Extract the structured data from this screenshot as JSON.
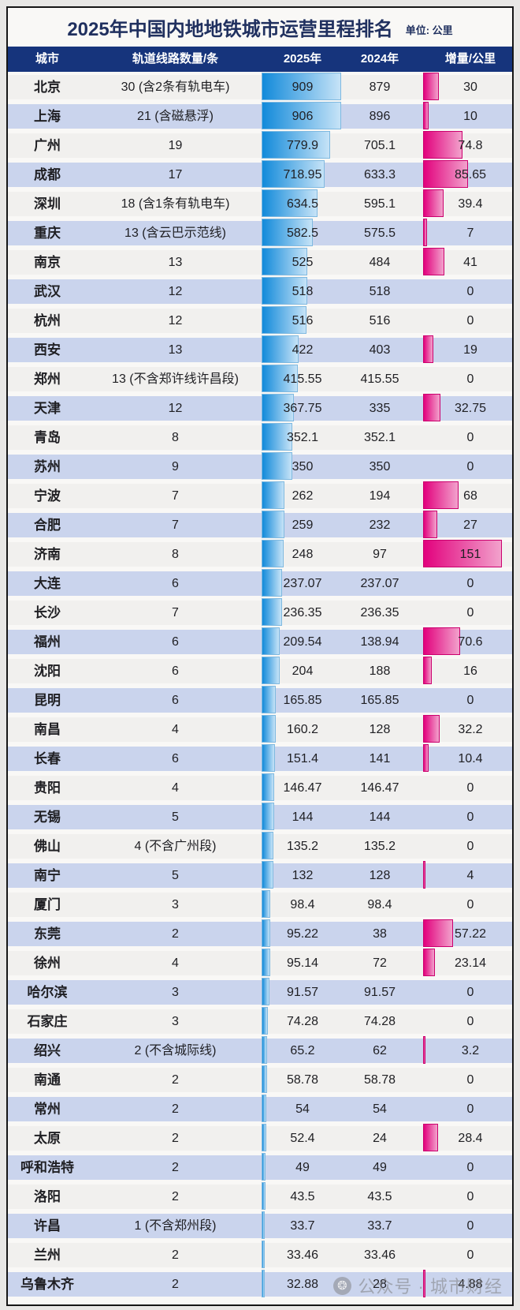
{
  "page": {
    "title": "2025年中国内地地铁城市运营里程排名",
    "unit_label": "单位: 公里",
    "watermark_text": "公众号 · 城市财经"
  },
  "colors": {
    "page_background": "#e8e7e5",
    "card_background": "#f9f8f6",
    "header_background": "#16347c",
    "header_text": "#ffffff",
    "row_odd": "#f1f0ee",
    "row_even": "#cad4ed",
    "body_text": "#1f1f23",
    "title_text": "#20305f",
    "mileage_bar_start": "#128ada",
    "mileage_bar_end": "#c6e3f7",
    "increment_bar_start": "#e2017d",
    "increment_bar_end": "#f2a2cc"
  },
  "chart_data": {
    "type": "table",
    "title": "2025年中国内地地铁城市运营里程排名",
    "unit": "公里",
    "columns": [
      "城市",
      "轨道线路数量/条",
      "2025年",
      "2024年",
      "增量/公里"
    ],
    "bar_columns": {
      "mileage_2025": {
        "axis_max": 909,
        "style": "blue-gradient-bar"
      },
      "increment": {
        "axis_max": 151,
        "style": "pink-gradient-bar"
      }
    },
    "rows": [
      {
        "city": "北京",
        "lines": "30 (含2条有轨电车)",
        "y2025": "909",
        "y2024": "879",
        "increment": "30"
      },
      {
        "city": "上海",
        "lines": "21 (含磁悬浮)",
        "y2025": "906",
        "y2024": "896",
        "increment": "10"
      },
      {
        "city": "广州",
        "lines": "19",
        "y2025": "779.9",
        "y2024": "705.1",
        "increment": "74.8"
      },
      {
        "city": "成都",
        "lines": "17",
        "y2025": "718.95",
        "y2024": "633.3",
        "increment": "85.65"
      },
      {
        "city": "深圳",
        "lines": "18 (含1条有轨电车)",
        "y2025": "634.5",
        "y2024": "595.1",
        "increment": "39.4"
      },
      {
        "city": "重庆",
        "lines": "13 (含云巴示范线)",
        "y2025": "582.5",
        "y2024": "575.5",
        "increment": "7"
      },
      {
        "city": "南京",
        "lines": "13",
        "y2025": "525",
        "y2024": "484",
        "increment": "41"
      },
      {
        "city": "武汉",
        "lines": "12",
        "y2025": "518",
        "y2024": "518",
        "increment": "0"
      },
      {
        "city": "杭州",
        "lines": "12",
        "y2025": "516",
        "y2024": "516",
        "increment": "0"
      },
      {
        "city": "西安",
        "lines": "13",
        "y2025": "422",
        "y2024": "403",
        "increment": "19"
      },
      {
        "city": "郑州",
        "lines": "13 (不含郑许线许昌段)",
        "y2025": "415.55",
        "y2024": "415.55",
        "increment": "0"
      },
      {
        "city": "天津",
        "lines": "12",
        "y2025": "367.75",
        "y2024": "335",
        "increment": "32.75"
      },
      {
        "city": "青岛",
        "lines": "8",
        "y2025": "352.1",
        "y2024": "352.1",
        "increment": "0"
      },
      {
        "city": "苏州",
        "lines": "9",
        "y2025": "350",
        "y2024": "350",
        "increment": "0"
      },
      {
        "city": "宁波",
        "lines": "7",
        "y2025": "262",
        "y2024": "194",
        "increment": "68"
      },
      {
        "city": "合肥",
        "lines": "7",
        "y2025": "259",
        "y2024": "232",
        "increment": "27"
      },
      {
        "city": "济南",
        "lines": "8",
        "y2025": "248",
        "y2024": "97",
        "increment": "151"
      },
      {
        "city": "大连",
        "lines": "6",
        "y2025": "237.07",
        "y2024": "237.07",
        "increment": "0"
      },
      {
        "city": "长沙",
        "lines": "7",
        "y2025": "236.35",
        "y2024": "236.35",
        "increment": "0"
      },
      {
        "city": "福州",
        "lines": "6",
        "y2025": "209.54",
        "y2024": "138.94",
        "increment": "70.6"
      },
      {
        "city": "沈阳",
        "lines": "6",
        "y2025": "204",
        "y2024": "188",
        "increment": "16"
      },
      {
        "city": "昆明",
        "lines": "6",
        "y2025": "165.85",
        "y2024": "165.85",
        "increment": "0"
      },
      {
        "city": "南昌",
        "lines": "4",
        "y2025": "160.2",
        "y2024": "128",
        "increment": "32.2"
      },
      {
        "city": "长春",
        "lines": "6",
        "y2025": "151.4",
        "y2024": "141",
        "increment": "10.4"
      },
      {
        "city": "贵阳",
        "lines": "4",
        "y2025": "146.47",
        "y2024": "146.47",
        "increment": "0"
      },
      {
        "city": "无锡",
        "lines": "5",
        "y2025": "144",
        "y2024": "144",
        "increment": "0"
      },
      {
        "city": "佛山",
        "lines": "4 (不含广州段)",
        "y2025": "135.2",
        "y2024": "135.2",
        "increment": "0"
      },
      {
        "city": "南宁",
        "lines": "5",
        "y2025": "132",
        "y2024": "128",
        "increment": "4"
      },
      {
        "city": "厦门",
        "lines": "3",
        "y2025": "98.4",
        "y2024": "98.4",
        "increment": "0"
      },
      {
        "city": "东莞",
        "lines": "2",
        "y2025": "95.22",
        "y2024": "38",
        "increment": "57.22"
      },
      {
        "city": "徐州",
        "lines": "4",
        "y2025": "95.14",
        "y2024": "72",
        "increment": "23.14"
      },
      {
        "city": "哈尔滨",
        "lines": "3",
        "y2025": "91.57",
        "y2024": "91.57",
        "increment": "0"
      },
      {
        "city": "石家庄",
        "lines": "3",
        "y2025": "74.28",
        "y2024": "74.28",
        "increment": "0"
      },
      {
        "city": "绍兴",
        "lines": "2 (不含城际线)",
        "y2025": "65.2",
        "y2024": "62",
        "increment": "3.2"
      },
      {
        "city": "南通",
        "lines": "2",
        "y2025": "58.78",
        "y2024": "58.78",
        "increment": "0"
      },
      {
        "city": "常州",
        "lines": "2",
        "y2025": "54",
        "y2024": "54",
        "increment": "0"
      },
      {
        "city": "太原",
        "lines": "2",
        "y2025": "52.4",
        "y2024": "24",
        "increment": "28.4"
      },
      {
        "city": "呼和浩特",
        "lines": "2",
        "y2025": "49",
        "y2024": "49",
        "increment": "0"
      },
      {
        "city": "洛阳",
        "lines": "2",
        "y2025": "43.5",
        "y2024": "43.5",
        "increment": "0"
      },
      {
        "city": "许昌",
        "lines": "1 (不含郑州段)",
        "y2025": "33.7",
        "y2024": "33.7",
        "increment": "0"
      },
      {
        "city": "兰州",
        "lines": "2",
        "y2025": "33.46",
        "y2024": "33.46",
        "increment": "0"
      },
      {
        "city": "乌鲁木齐",
        "lines": "2",
        "y2025": "32.88",
        "y2024": "28",
        "increment": "4.88"
      }
    ]
  }
}
